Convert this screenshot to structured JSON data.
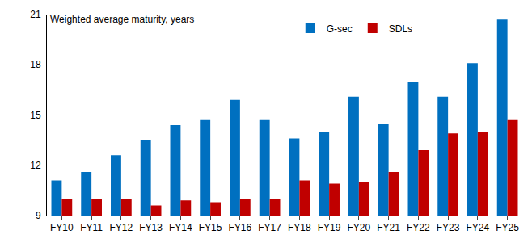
{
  "chart_data": {
    "type": "bar",
    "title": "Weighted average maturity, years",
    "categories": [
      "FY10",
      "FY11",
      "FY12",
      "FY13",
      "FY14",
      "FY15",
      "FY16",
      "FY17",
      "FY18",
      "FY19",
      "FY20",
      "FY21",
      "FY22",
      "FY23",
      "FY24",
      "FY25"
    ],
    "series": [
      {
        "name": "G-sec",
        "color": "#0070c0",
        "values": [
          11.1,
          11.6,
          12.6,
          13.5,
          14.4,
          14.7,
          15.9,
          14.7,
          13.6,
          14.0,
          16.1,
          14.5,
          17.0,
          16.1,
          18.1,
          20.7
        ]
      },
      {
        "name": "SDLs",
        "color": "#c00000",
        "values": [
          10.0,
          10.0,
          10.0,
          9.6,
          9.9,
          9.8,
          10.0,
          10.0,
          11.1,
          10.9,
          11.0,
          11.6,
          12.9,
          13.9,
          14.0,
          14.7
        ]
      }
    ],
    "ylim": [
      9,
      21
    ],
    "yticks": [
      9,
      12,
      15,
      18,
      21
    ],
    "grid": false,
    "legend": "top"
  }
}
